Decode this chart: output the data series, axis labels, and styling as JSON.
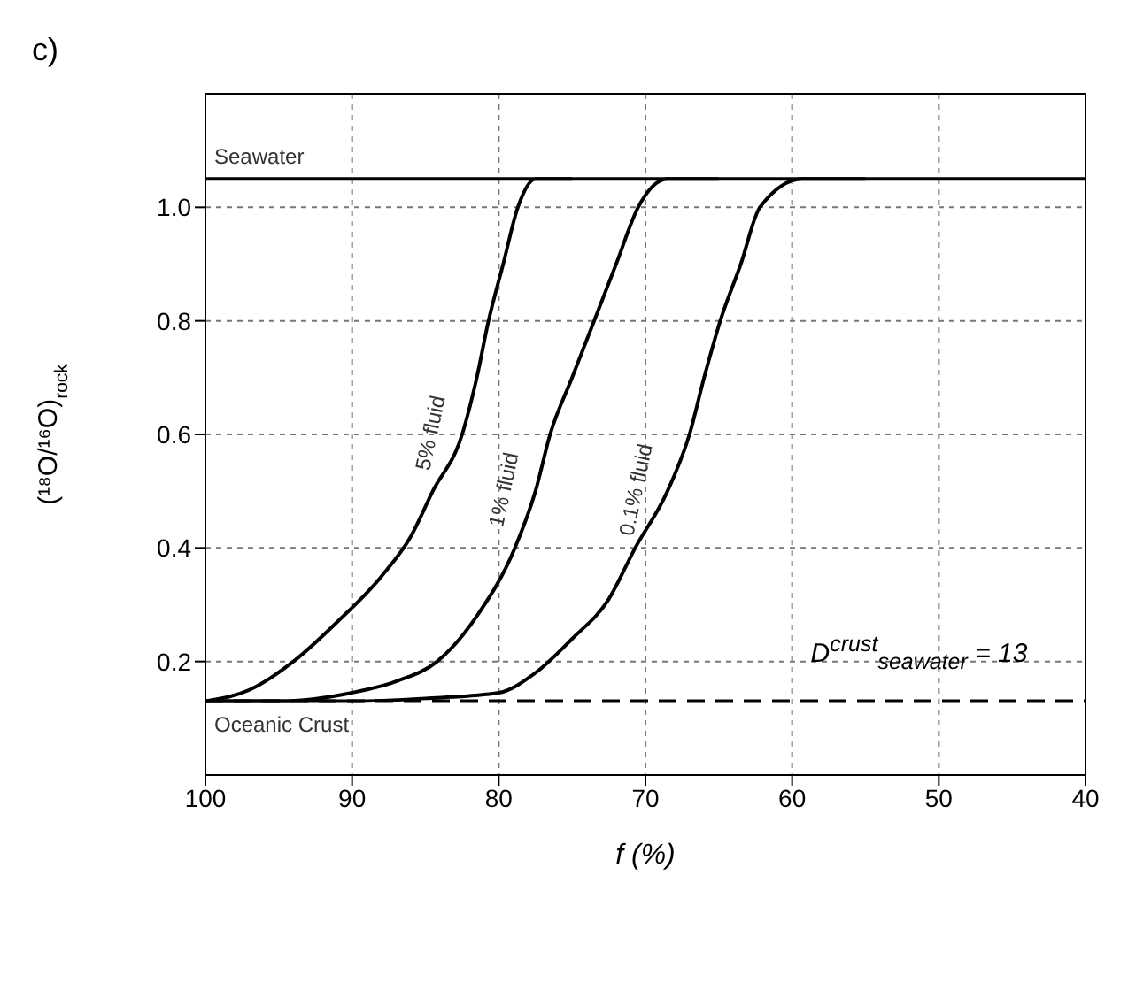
{
  "chart_data": {
    "type": "line",
    "xlabel": "f (%)",
    "ylabel": "(¹⁸O/¹⁶O)$_{rock}$",
    "xlim": [
      100,
      40
    ],
    "xticks": [
      100,
      90,
      80,
      70,
      60,
      50,
      40
    ],
    "ylim": [
      0,
      1.2
    ],
    "yticks": [
      0.2,
      0.4,
      0.6,
      0.8,
      {
        "value": 1,
        "label": "1.0"
      }
    ],
    "grid": true,
    "marker": "none",
    "line_style": "solid",
    "series": [
      {
        "name": "5% fluid",
        "color": "#000000",
        "x": [
          100,
          97,
          94,
          91,
          88,
          86,
          84.5,
          82.5,
          81.5,
          80.7,
          79.7,
          78.7,
          77.5,
          75
        ],
        "values": [
          0.13,
          0.15,
          0.2,
          0.27,
          0.35,
          0.42,
          0.5,
          0.6,
          0.7,
          0.8,
          0.9,
          1.0,
          1.05,
          1.05
        ]
      },
      {
        "name": "1% fluid",
        "color": "#000000",
        "x": [
          100,
          95,
          90,
          87,
          84.2,
          81.5,
          78.9,
          77.5,
          76.5,
          75,
          73.5,
          72,
          70.5,
          68.5,
          65
        ],
        "values": [
          0.13,
          0.13,
          0.145,
          0.165,
          0.2,
          0.28,
          0.4,
          0.5,
          0.6,
          0.7,
          0.8,
          0.9,
          1.0,
          1.05,
          1.05
        ]
      },
      {
        "name": "0.1% fluid",
        "color": "#000000",
        "x": [
          100,
          90,
          85,
          80,
          77.5,
          75,
          72.5,
          70.7,
          68.5,
          67,
          66,
          64.9,
          63.5,
          62.2,
          59.3,
          55
        ],
        "values": [
          0.13,
          0.13,
          0.135,
          0.145,
          0.18,
          0.24,
          0.31,
          0.4,
          0.5,
          0.6,
          0.7,
          0.8,
          0.9,
          1.0,
          1.05,
          1.05
        ]
      }
    ],
    "ref_lines": [
      {
        "axis": "y",
        "value": 1.05,
        "label": "Seawater",
        "line_style": "solid",
        "color": "#000000"
      },
      {
        "axis": "y",
        "value": 0.13,
        "label": "Oceanic Crust",
        "line_style": "dashed",
        "color": "#000000"
      }
    ],
    "annotations": [
      "c)",
      "D$^{crust}$$_{seawater}$ = 13"
    ]
  }
}
